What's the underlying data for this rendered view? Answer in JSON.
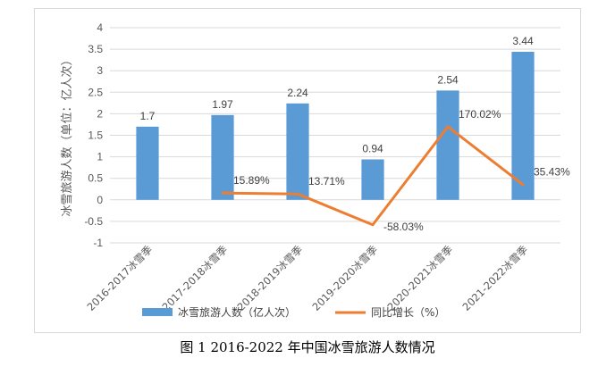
{
  "caption": "图 1  2016-2022 年中国冰雪旅游人数情况",
  "chart_data": {
    "type": "bar",
    "categories": [
      "2016-2017冰雪季",
      "2017-2018冰雪季",
      "2018-2019冰雪季",
      "2019-2020冰雪季",
      "2020-2021冰雪季",
      "2021-2022冰雪季"
    ],
    "ylabel": "冰雪旅游人数（单位：亿人次）",
    "ylim": [
      -1,
      4
    ],
    "yticks": [
      -1,
      -0.5,
      0,
      0.5,
      1,
      1.5,
      2,
      2.5,
      3,
      3.5,
      4
    ],
    "ytick_labels": [
      "-1",
      "-0.5",
      "0",
      "0.5",
      "1",
      "1.5",
      "2",
      "2.5",
      "3",
      "3.5",
      "4"
    ],
    "grid": true,
    "legend_position": "bottom",
    "series": [
      {
        "name": "冰雪旅游人数（亿人次）",
        "type": "bar",
        "color": "#5b9bd5",
        "values": [
          1.7,
          1.97,
          2.24,
          0.94,
          2.54,
          3.44
        ],
        "labels": [
          "1.7",
          "1.97",
          "2.24",
          "0.94",
          "2.54",
          "3.44"
        ]
      },
      {
        "name": "同比增长（%）",
        "type": "line",
        "color": "#ed7d31",
        "values": [
          null,
          0.1589,
          0.1371,
          -0.5803,
          1.7002,
          0.3543
        ],
        "labels": [
          "",
          "15.89%",
          "13.71%",
          "-58.03%",
          "170.02%",
          "35.43%"
        ]
      }
    ]
  }
}
